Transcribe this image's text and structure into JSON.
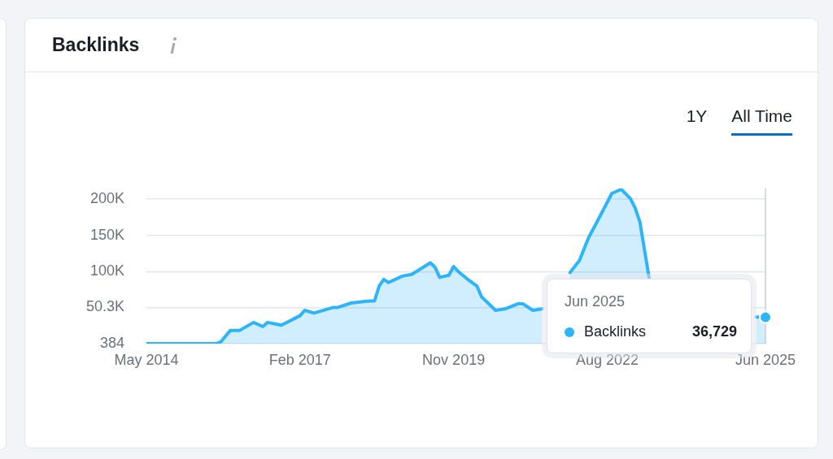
{
  "chart_data": {
    "type": "area",
    "title": "Backlinks",
    "x": [
      "2014-05",
      "2015-08",
      "2015-09",
      "2015-11",
      "2016-01",
      "2016-04",
      "2016-06",
      "2016-07",
      "2016-10",
      "2017-02",
      "2017-03",
      "2017-05",
      "2017-09",
      "2017-10",
      "2018-01",
      "2018-04",
      "2018-06",
      "2018-07",
      "2018-08",
      "2018-09",
      "2018-12",
      "2019-02",
      "2019-06",
      "2019-07",
      "2019-08",
      "2019-10",
      "2019-11",
      "2019-12",
      "2020-02",
      "2020-04",
      "2020-05",
      "2020-08",
      "2020-10",
      "2021-01",
      "2021-02",
      "2021-04",
      "2021-06",
      "2021-09",
      "2021-12",
      "2022-02",
      "2022-04",
      "2022-06",
      "2022-09",
      "2022-11",
      "2023-01",
      "2023-02",
      "2023-03",
      "2023-05",
      "2023-07",
      "2025-04",
      "2025-06"
    ],
    "series": [
      {
        "name": "Backlinks",
        "color": "#2eb3fd",
        "values": [
          384,
          384,
          3000,
          18500,
          18500,
          29700,
          24000,
          29700,
          26000,
          39000,
          46400,
          42700,
          50200,
          50200,
          56500,
          58700,
          59500,
          80000,
          89300,
          84800,
          93700,
          96000,
          112000,
          105900,
          92000,
          95000,
          107000,
          100000,
          89300,
          80000,
          65000,
          46400,
          48300,
          55800,
          55000,
          46400,
          48300,
          null,
          98500,
          115000,
          146800,
          171000,
          208000,
          213700,
          200700,
          187700,
          169000,
          91000,
          null,
          37200,
          36729
        ]
      }
    ],
    "xlim": [
      "2014-05",
      "2025-06"
    ],
    "xticks": [
      {
        "value": "2014-05",
        "label": "May 2014"
      },
      {
        "value": "2017-02",
        "label": "Feb 2017"
      },
      {
        "value": "2019-11",
        "label": "Nov 2019"
      },
      {
        "value": "2022-08",
        "label": "Aug 2022"
      },
      {
        "value": "2025-06",
        "label": "Jun 2025"
      }
    ],
    "ylim": [
      384,
      215000
    ],
    "yticks": [
      384,
      {
        "value": 50300,
        "label": "50.3K"
      },
      {
        "value": 100000,
        "label": "100K"
      },
      {
        "value": 150000,
        "label": "150K"
      },
      {
        "value": 200000,
        "label": "200K"
      }
    ],
    "grid": "y",
    "legend": "bottom right",
    "marker": "none",
    "line_style": "solid",
    "ref_lines": [
      {
        "axis": "x",
        "value": "2025-06",
        "color": "#c9ccd6"
      }
    ],
    "annotations": [
      "1Y",
      "All Time",
      "Jun 2025",
      "36,729"
    ]
  }
}
